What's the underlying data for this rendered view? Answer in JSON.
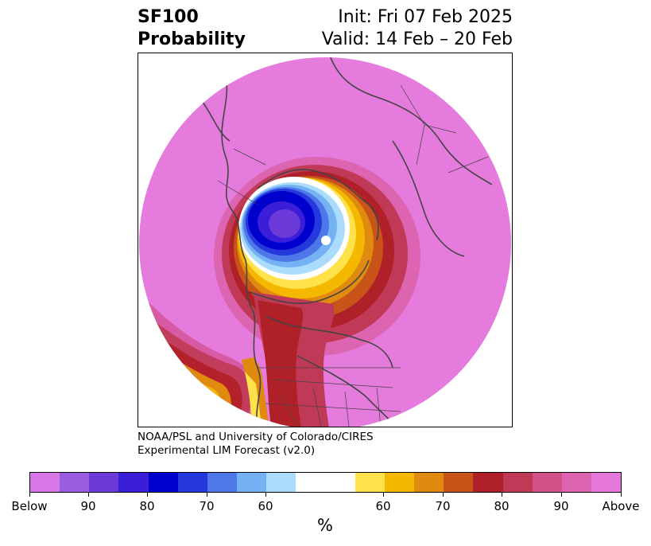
{
  "header": {
    "product": "SF100",
    "variable": "Probability",
    "init": "Init: Fri 07 Feb 2025",
    "valid": "Valid: 14 Feb – 20 Feb"
  },
  "credit": {
    "line1": "NOAA/PSL and University of Colorado/CIRES",
    "line2": "Experimental LIM Forecast (v2.0)"
  },
  "colorbar": {
    "unit": "%",
    "colors": [
      "#d878e8",
      "#9c5ce0",
      "#6c3ad8",
      "#3a1ed8",
      "#0000cc",
      "#2438dc",
      "#4e78e8",
      "#74b2f4",
      "#acdcfc",
      "#ffffff",
      "#ffffff",
      "#ffe24a",
      "#f4b800",
      "#e08a10",
      "#c8541a",
      "#b02028",
      "#c03a58",
      "#d05288",
      "#dc64b0",
      "#e678dc"
    ],
    "ticks": [
      "Below",
      "90",
      "80",
      "70",
      "60",
      "60",
      "70",
      "80",
      "90",
      "Above"
    ]
  },
  "map": {
    "background": "#e57bdc",
    "coastline_color": "#444444"
  }
}
